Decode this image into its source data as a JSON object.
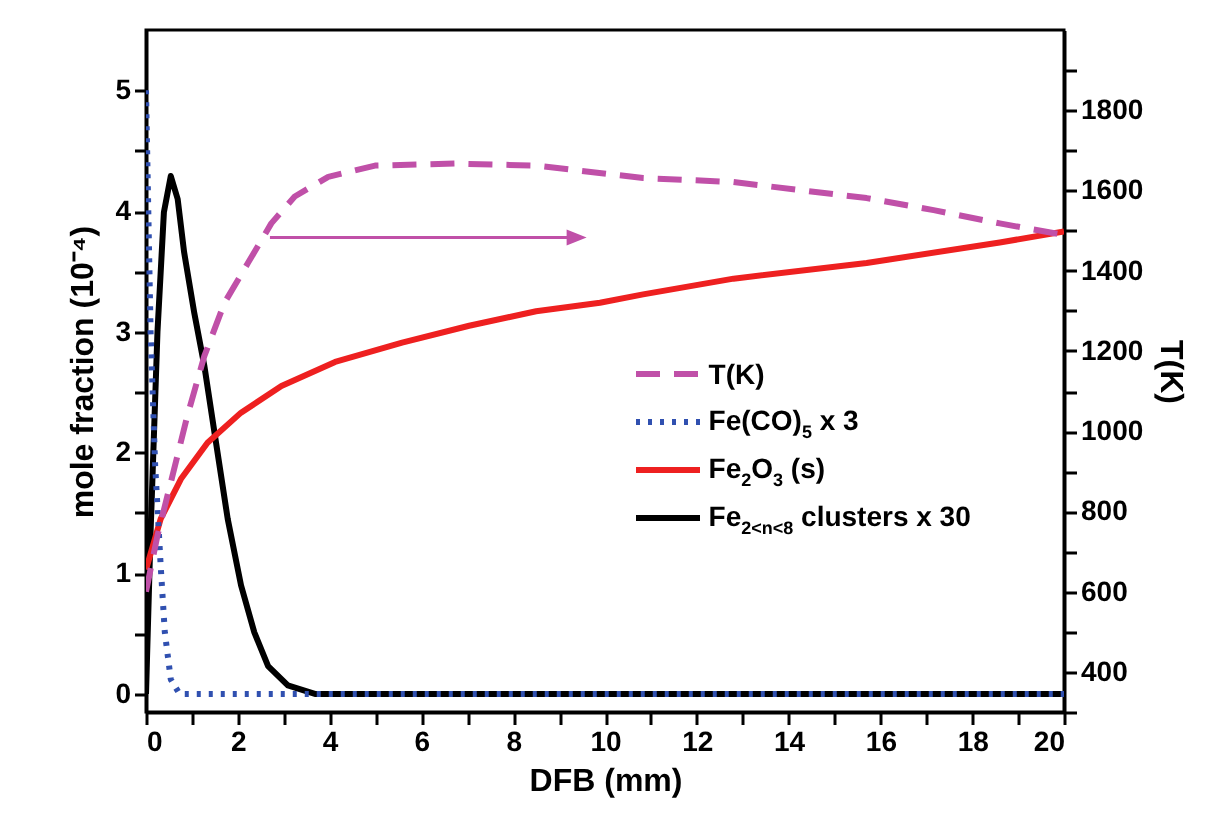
{
  "chart_data": {
    "type": "line",
    "xlabel": "DFB (mm)",
    "ylabel": "mole fraction (10⁻⁴)",
    "y2label": "T(K)",
    "xlim": [
      0,
      20
    ],
    "xticks": [
      0,
      {
        "value": 1,
        "label": null
      },
      2,
      {
        "value": 3,
        "label": null
      },
      4,
      {
        "value": 5,
        "label": null
      },
      6,
      {
        "value": 7,
        "label": null
      },
      8,
      {
        "value": 9,
        "label": null
      },
      10,
      {
        "value": 11,
        "label": null
      },
      12,
      {
        "value": 13,
        "label": null
      },
      14,
      {
        "value": 15,
        "label": null
      },
      16,
      {
        "value": 17,
        "label": null
      },
      18,
      {
        "value": 19,
        "label": null
      },
      20
    ],
    "ylim": [
      -0.15,
      5.5
    ],
    "yticks": [
      0,
      {
        "value": 0.5,
        "label": null
      },
      1,
      {
        "value": 1.5,
        "label": null
      },
      2,
      {
        "value": 2.5,
        "label": null
      },
      3,
      {
        "value": 3.5,
        "label": null
      },
      4,
      {
        "value": 4.5,
        "label": null
      },
      5
    ],
    "y2lim": [
      300,
      2000
    ],
    "y2ticks": [
      {
        "value": 300,
        "label": null
      },
      400,
      {
        "value": 500,
        "label": null
      },
      600,
      {
        "value": 700,
        "label": null
      },
      800,
      {
        "value": 900,
        "label": null
      },
      1000,
      {
        "value": 1100,
        "label": null
      },
      1200,
      {
        "value": 1300,
        "label": null
      },
      1400,
      {
        "value": 1500,
        "label": null
      },
      1600,
      {
        "value": 1700,
        "label": null
      },
      1800,
      {
        "value": 1900,
        "label": null
      }
    ],
    "grid": false,
    "legend": "right",
    "series": [
      {
        "name": "T(K)",
        "axis": "y2",
        "color": "#c050a8",
        "line_style": "dashed",
        "x": [
          0,
          0.25,
          0.54,
          0.9,
          1.27,
          1.71,
          2.22,
          2.73,
          3.24,
          3.97,
          4.99,
          6.74,
          8.5,
          10.83,
          12.8,
          14.25,
          15.7,
          17.16,
          18.6,
          20
        ],
        "values": [
          600,
          740,
          872,
          1038,
          1187,
          1320,
          1419,
          1518,
          1585,
          1634,
          1662,
          1667,
          1662,
          1631,
          1621,
          1601,
          1581,
          1551,
          1518,
          1489
        ]
      },
      {
        "name": "Fe(CO)$_{5}$ x 3",
        "color": "#3050b0",
        "line_style": "dotted",
        "x": [
          0,
          0.1,
          0.2,
          0.32,
          0.41,
          0.54,
          0.73,
          20
        ],
        "values": [
          5.0,
          3.0,
          1.89,
          1.06,
          0.51,
          0.12,
          0,
          0
        ]
      },
      {
        "name": "Fe$_{2}$O$_{3}$ (s)",
        "color": "#ee2020",
        "line_style": "solid",
        "x": [
          0,
          0.32,
          0.76,
          1.34,
          2.07,
          2.95,
          4.12,
          5.58,
          7.04,
          8.5,
          9.89,
          10.83,
          12.8,
          15.7,
          18.6,
          20
        ],
        "values": [
          1.03,
          1.45,
          1.78,
          2.08,
          2.33,
          2.55,
          2.75,
          2.91,
          3.05,
          3.17,
          3.24,
          3.31,
          3.44,
          3.57,
          3.74,
          3.83
        ]
      },
      {
        "name": "Fe$_{2<n<8}$ clusters x 30",
        "color": "#000000",
        "line_style": "solid",
        "x": [
          0,
          0.1,
          0.25,
          0.39,
          0.54,
          0.69,
          0.83,
          1.05,
          1.27,
          1.49,
          1.78,
          2.07,
          2.36,
          2.66,
          3.09,
          3.68,
          20
        ],
        "values": [
          0,
          1.34,
          3.0,
          3.99,
          4.29,
          4.1,
          3.66,
          3.16,
          2.72,
          2.17,
          1.45,
          0.9,
          0.51,
          0.23,
          0.07,
          0,
          0
        ]
      }
    ]
  }
}
